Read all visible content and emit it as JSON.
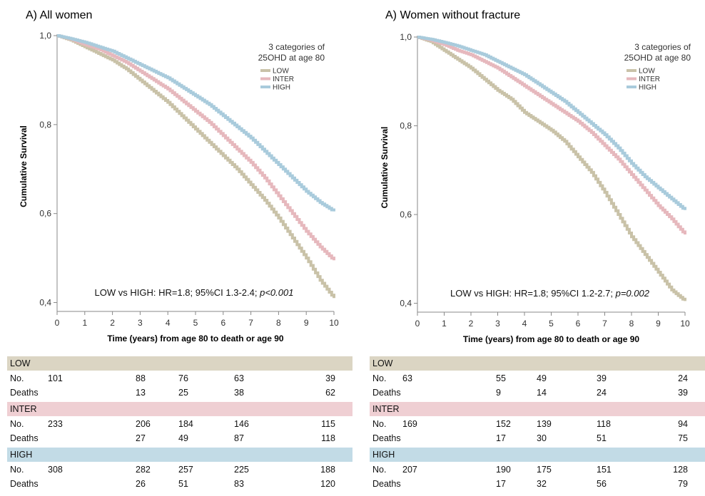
{
  "colors": {
    "low": "#c9c2a8",
    "inter": "#e6b8bd",
    "high": "#a9cbdc",
    "low_band": "#dbd5c3",
    "inter_band": "#efcfd3",
    "high_band": "#c2dbe6"
  },
  "chart_data": [
    {
      "type": "line",
      "panel_title": "A) All women",
      "xlabel": "Time (years) from age 80 to death or age 90",
      "ylabel": "Cumulative Survival",
      "xlim": [
        0,
        10
      ],
      "ylim": [
        0.38,
        1.0
      ],
      "x_ticks": [
        "0",
        "1",
        "2",
        "3",
        "4",
        "5",
        "6",
        "7",
        "8",
        "9",
        "10"
      ],
      "y_ticks": [
        {
          "v": 1.0,
          "label": "1,0"
        },
        {
          "v": 0.8,
          "label": "0,8"
        },
        {
          "v": 0.6,
          "label": "0,6"
        },
        {
          "v": 0.4,
          "label": "0,4"
        }
      ],
      "legend_title": [
        "3 categories of",
        "25OHD at age 80"
      ],
      "stat_text": {
        "main": "LOW vs HIGH: HR=1.8; 95%CI 1.3-2.4; ",
        "italic": "p<0.001"
      },
      "series": [
        {
          "name": "LOW",
          "color_key": "low",
          "x": [
            0,
            0.5,
            1,
            1.5,
            2,
            2.5,
            3,
            3.5,
            4,
            4.5,
            5,
            5.5,
            6,
            6.5,
            7,
            7.5,
            8,
            8.5,
            9,
            9.5,
            10
          ],
          "y": [
            1.0,
            0.99,
            0.975,
            0.96,
            0.945,
            0.925,
            0.9,
            0.875,
            0.85,
            0.82,
            0.79,
            0.76,
            0.73,
            0.7,
            0.665,
            0.63,
            0.59,
            0.545,
            0.5,
            0.45,
            0.41
          ]
        },
        {
          "name": "INTER",
          "color_key": "inter",
          "x": [
            0,
            0.5,
            1,
            1.5,
            2,
            2.5,
            3,
            3.5,
            4,
            4.5,
            5,
            5.5,
            6,
            6.5,
            7,
            7.5,
            8,
            8.5,
            9,
            9.5,
            10
          ],
          "y": [
            1.0,
            0.992,
            0.98,
            0.97,
            0.955,
            0.94,
            0.92,
            0.9,
            0.88,
            0.855,
            0.83,
            0.805,
            0.775,
            0.745,
            0.715,
            0.68,
            0.64,
            0.6,
            0.56,
            0.525,
            0.495
          ]
        },
        {
          "name": "HIGH",
          "color_key": "high",
          "x": [
            0,
            0.5,
            1,
            1.5,
            2,
            2.5,
            3,
            3.5,
            4,
            4.5,
            5,
            5.5,
            6,
            6.5,
            7,
            7.5,
            8,
            8.5,
            9,
            9.5,
            10
          ],
          "y": [
            1.0,
            0.993,
            0.985,
            0.975,
            0.965,
            0.95,
            0.935,
            0.92,
            0.905,
            0.885,
            0.865,
            0.845,
            0.82,
            0.795,
            0.77,
            0.74,
            0.71,
            0.68,
            0.65,
            0.625,
            0.605
          ]
        }
      ]
    },
    {
      "type": "line",
      "panel_title": "A)  Women without fracture",
      "xlabel": "Time (years) from age 80 to death or age 90",
      "ylabel": "Cumulative Survival",
      "xlim": [
        0,
        10
      ],
      "ylim": [
        0.38,
        1.0
      ],
      "x_ticks": [
        "0",
        "1",
        "2",
        "3",
        "4",
        "5",
        "6",
        "7",
        "8",
        "9",
        "10"
      ],
      "y_ticks": [
        {
          "v": 1.0,
          "label": "1,0"
        },
        {
          "v": 0.8,
          "label": "0,8"
        },
        {
          "v": 0.6,
          "label": "0,6"
        },
        {
          "v": 0.4,
          "label": "0,4"
        }
      ],
      "legend_title": [
        "3 categories of",
        "25OHD at age 80"
      ],
      "stat_text": {
        "main": "LOW vs HIGH: HR=1.8; 95%CI 1.2-2.7; ",
        "italic": "p=0.002"
      },
      "series": [
        {
          "name": "LOW",
          "color_key": "low",
          "x": [
            0,
            0.5,
            1,
            1.5,
            2,
            2.5,
            3,
            3.5,
            4,
            4.5,
            5,
            5.5,
            6,
            6.5,
            7,
            7.5,
            8,
            8.5,
            9,
            9.5,
            10
          ],
          "y": [
            1.0,
            0.99,
            0.97,
            0.95,
            0.93,
            0.905,
            0.88,
            0.86,
            0.83,
            0.81,
            0.79,
            0.765,
            0.73,
            0.695,
            0.65,
            0.6,
            0.55,
            0.51,
            0.47,
            0.43,
            0.405
          ]
        },
        {
          "name": "INTER",
          "color_key": "inter",
          "x": [
            0,
            0.5,
            1,
            1.5,
            2,
            2.5,
            3,
            3.5,
            4,
            4.5,
            5,
            5.5,
            6,
            6.5,
            7,
            7.5,
            8,
            8.5,
            9,
            9.5,
            10
          ],
          "y": [
            1.0,
            0.993,
            0.983,
            0.97,
            0.96,
            0.945,
            0.93,
            0.91,
            0.89,
            0.87,
            0.85,
            0.83,
            0.81,
            0.785,
            0.755,
            0.725,
            0.69,
            0.655,
            0.62,
            0.59,
            0.555
          ]
        },
        {
          "name": "HIGH",
          "color_key": "high",
          "x": [
            0,
            0.5,
            1,
            1.5,
            2,
            2.5,
            3,
            3.5,
            4,
            4.5,
            5,
            5.5,
            6,
            6.5,
            7,
            7.5,
            8,
            8.5,
            9,
            9.5,
            10
          ],
          "y": [
            1.0,
            0.995,
            0.988,
            0.98,
            0.97,
            0.96,
            0.945,
            0.93,
            0.915,
            0.895,
            0.875,
            0.855,
            0.83,
            0.805,
            0.78,
            0.75,
            0.715,
            0.685,
            0.66,
            0.635,
            0.61
          ]
        }
      ]
    }
  ],
  "risk_tables": [
    {
      "groups": [
        {
          "name": "LOW",
          "color_key": "low_band",
          "rows": [
            {
              "label": "No.",
              "values": [
                "101",
                "88",
                "76",
                "63",
                "39"
              ]
            },
            {
              "label": "Deaths",
              "values": [
                "",
                "13",
                "25",
                "38",
                "62"
              ]
            }
          ]
        },
        {
          "name": "INTER",
          "color_key": "inter_band",
          "rows": [
            {
              "label": "No.",
              "values": [
                "233",
                "206",
                "184",
                "146",
                "115"
              ]
            },
            {
              "label": "Deaths",
              "values": [
                "",
                "27",
                "49",
                "87",
                "118"
              ]
            }
          ]
        },
        {
          "name": "HIGH",
          "color_key": "high_band",
          "rows": [
            {
              "label": "No.",
              "values": [
                "308",
                "282",
                "257",
                "225",
                "188"
              ]
            },
            {
              "label": "Deaths",
              "values": [
                "",
                "26",
                "51",
                "83",
                "120"
              ]
            }
          ]
        }
      ]
    },
    {
      "groups": [
        {
          "name": "LOW",
          "color_key": "low_band",
          "rows": [
            {
              "label": "No.",
              "values": [
                "63",
                "55",
                "49",
                "39",
                "24"
              ]
            },
            {
              "label": "Deaths",
              "values": [
                "",
                "9",
                "14",
                "24",
                "39"
              ]
            }
          ]
        },
        {
          "name": "INTER",
          "color_key": "inter_band",
          "rows": [
            {
              "label": "No.",
              "values": [
                "169",
                "152",
                "139",
                "118",
                "94"
              ]
            },
            {
              "label": "Deaths",
              "values": [
                "",
                "17",
                "30",
                "51",
                "75"
              ]
            }
          ]
        },
        {
          "name": "HIGH",
          "color_key": "high_band",
          "rows": [
            {
              "label": "No.",
              "values": [
                "207",
                "190",
                "175",
                "151",
                "128"
              ]
            },
            {
              "label": "Deaths",
              "values": [
                "",
                "17",
                "32",
                "56",
                "79"
              ]
            }
          ]
        }
      ]
    }
  ]
}
